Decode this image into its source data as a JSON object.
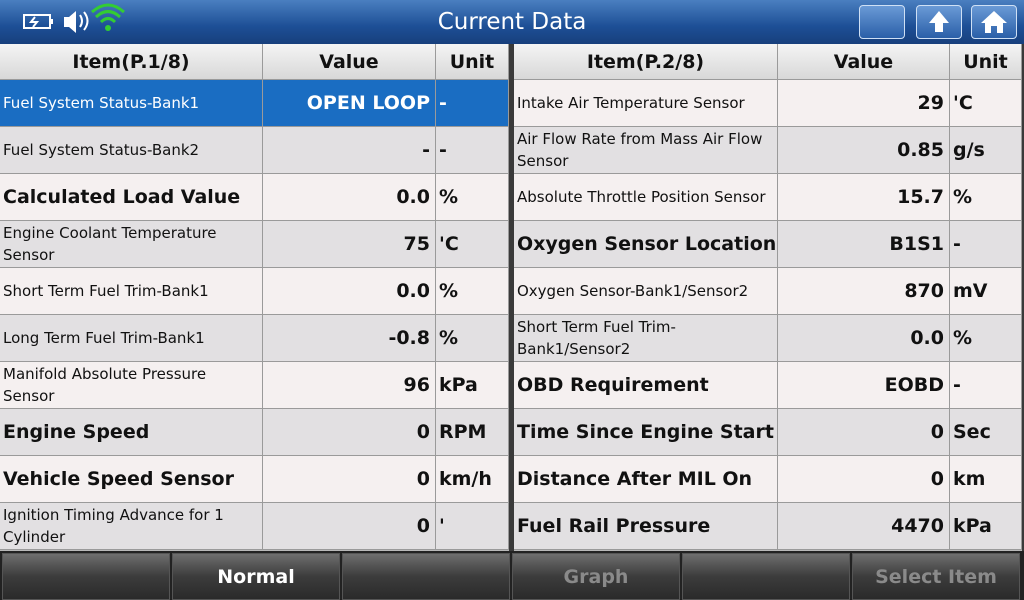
{
  "header": {
    "title": "Current Data"
  },
  "tables": [
    {
      "columns": [
        "Item(P.1/8)",
        "Value",
        "Unit"
      ],
      "rows": [
        [
          "Fuel System Status-Bank1",
          "OPEN LOOP",
          "-"
        ],
        [
          "Fuel System Status-Bank2",
          "-",
          "-"
        ],
        [
          "Calculated Load Value",
          "0.0",
          "%"
        ],
        [
          "Engine Coolant Temperature Sensor",
          "75",
          "'C"
        ],
        [
          "Short Term Fuel Trim-Bank1",
          "0.0",
          "%"
        ],
        [
          "Long Term Fuel Trim-Bank1",
          "-0.8",
          "%"
        ],
        [
          "Manifold Absolute Pressure Sensor",
          "96",
          "kPa"
        ],
        [
          "Engine Speed",
          "0",
          "RPM"
        ],
        [
          "Vehicle Speed Sensor",
          "0",
          "km/h"
        ],
        [
          "Ignition Timing Advance for 1 Cylinder",
          "0",
          "'"
        ]
      ]
    },
    {
      "columns": [
        "Item(P.2/8)",
        "Value",
        "Unit"
      ],
      "rows": [
        [
          "Intake Air Temperature Sensor",
          "29",
          "'C"
        ],
        [
          "Air Flow Rate from Mass Air Flow Sensor",
          "0.85",
          "g/s"
        ],
        [
          "Absolute Throttle Position Sensor",
          "15.7",
          "%"
        ],
        [
          "Oxygen Sensor Location",
          "B1S1",
          "-"
        ],
        [
          "Oxygen Sensor-Bank1/Sensor2",
          "870",
          "mV"
        ],
        [
          "Short Term Fuel Trim-Bank1/Sensor2",
          "0.0",
          "%"
        ],
        [
          "OBD Requirement",
          "EOBD",
          "-"
        ],
        [
          "Time Since Engine Start",
          "0",
          "Sec"
        ],
        [
          "Distance After MIL On",
          "0",
          "km"
        ],
        [
          "Fuel Rail Pressure",
          "4470",
          "kPa"
        ]
      ]
    }
  ],
  "footer": {
    "buttons": {
      "1": "Normal",
      "3": "Graph",
      "5": "Select Item"
    }
  }
}
